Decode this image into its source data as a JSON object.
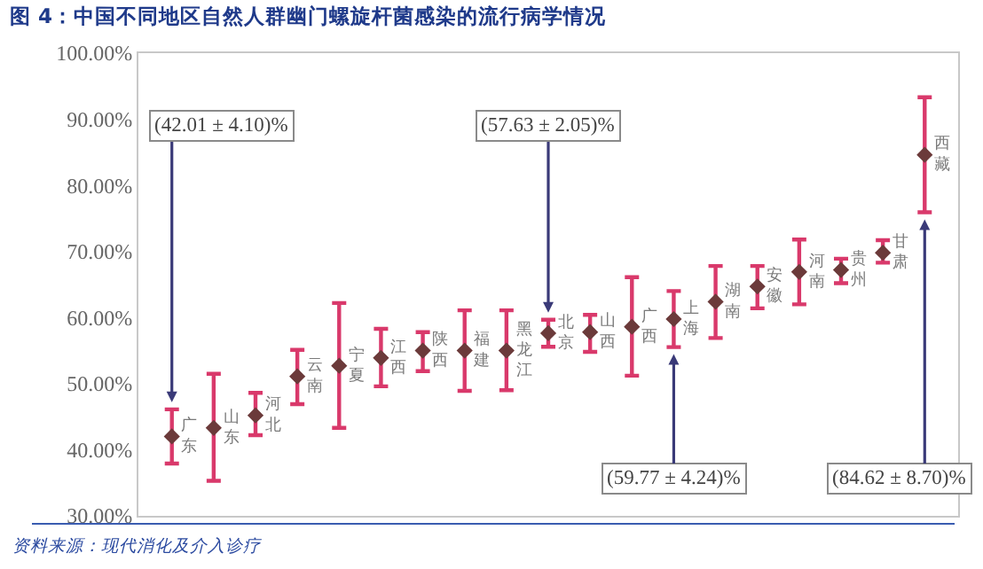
{
  "chart_data": {
    "type": "scatter",
    "title": "图 4：中国不同地区自然人群幽门螺旋杆菌感染的流行病学情况",
    "categories": [
      "广东",
      "山东",
      "河北",
      "云南",
      "宁夏",
      "江西",
      "陕西",
      "福建",
      "黑龙江",
      "北京",
      "山西",
      "广西",
      "上海",
      "湖南",
      "安徽",
      "河南",
      "贵州",
      "甘肃",
      "西藏"
    ],
    "series": [
      {
        "color": "#6b3a3a",
        "values": [
          42.01,
          43.3,
          45.2,
          51.1,
          52.7,
          53.9,
          55.0,
          55.0,
          55.0,
          57.63,
          57.8,
          58.6,
          59.77,
          62.4,
          64.7,
          66.9,
          67.2,
          69.8,
          84.62
        ],
        "errors": [
          4.1,
          [
            35.3,
            51.5
          ],
          [
            42.2,
            48.6
          ],
          [
            46.9,
            55.1
          ],
          [
            43.3,
            62.2
          ],
          [
            49.6,
            58.3
          ],
          [
            51.9,
            57.8
          ],
          [
            48.9,
            61.1
          ],
          [
            49.0,
            61.1
          ],
          2.05,
          [
            54.8,
            60.4
          ],
          [
            51.2,
            66.1
          ],
          4.24,
          [
            56.9,
            67.8
          ],
          [
            61.4,
            67.8
          ],
          [
            62.0,
            71.8
          ],
          [
            65.2,
            68.9
          ],
          [
            68.3,
            71.7
          ],
          8.7
        ]
      }
    ],
    "marker": "diamond",
    "ylim": [
      30,
      100
    ],
    "yticks": [
      {
        "value": 30,
        "label": "30.00%"
      },
      {
        "value": 40,
        "label": "40.00%"
      },
      {
        "value": 50,
        "label": "50.00%"
      },
      {
        "value": 60,
        "label": "60.00%"
      },
      {
        "value": 70,
        "label": "70.00%"
      },
      {
        "value": 80,
        "label": "80.00%"
      },
      {
        "value": 90,
        "label": "90.00%"
      },
      {
        "value": 100,
        "label": "100.00%"
      }
    ],
    "grid": false,
    "annotations": [
      "(42.01 ± 4.10)%",
      "(57.63 ± 2.05)%",
      "(59.77 ± 4.24)%",
      "(84.62 ± 8.70)%",
      "资料来源：现代消化及介入诊疗"
    ]
  }
}
